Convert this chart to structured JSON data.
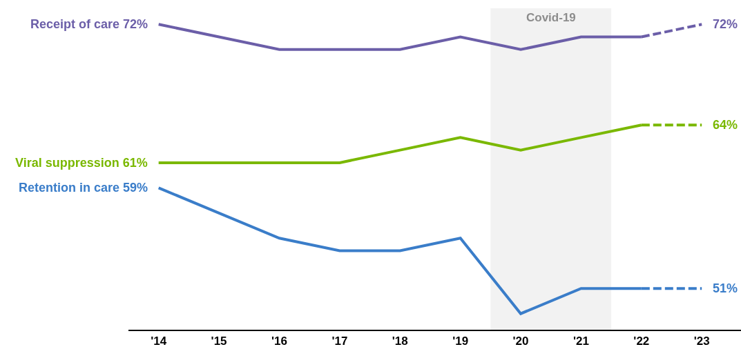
{
  "chart_data": {
    "type": "line",
    "x": [
      2014,
      2015,
      2016,
      2017,
      2018,
      2019,
      2020,
      2021,
      2022,
      2023
    ],
    "xlim": [
      2013.5,
      2023.65
    ],
    "xticks": [
      {
        "value": 2014,
        "label": "'14"
      },
      {
        "value": 2015,
        "label": "'15"
      },
      {
        "value": 2016,
        "label": "'16"
      },
      {
        "value": 2017,
        "label": "'17"
      },
      {
        "value": 2018,
        "label": "'18"
      },
      {
        "value": 2019,
        "label": "'19"
      },
      {
        "value": 2020,
        "label": "'20"
      },
      {
        "value": 2021,
        "label": "'21"
      },
      {
        "value": 2022,
        "label": "'22"
      },
      {
        "value": 2023,
        "label": "'23"
      }
    ],
    "tick_labels": "x",
    "grid": false,
    "legend": false,
    "marker": "none",
    "series": [
      {
        "name": "Receipt of care",
        "color": "#6b5ea8",
        "line_style": "solid",
        "values": [
          72,
          71,
          70,
          70,
          70,
          71,
          70,
          71,
          71,
          null
        ],
        "value_labels": [
          "72%",
          null,
          null,
          null,
          null,
          null,
          null,
          null,
          null,
          null
        ]
      },
      {
        "color": "#6b5ea8",
        "line_style": "dashed",
        "values": [
          null,
          null,
          null,
          null,
          null,
          null,
          null,
          null,
          71,
          72
        ],
        "value_labels": [
          null,
          null,
          null,
          null,
          null,
          null,
          null,
          null,
          null,
          "72%"
        ]
      },
      {
        "name": "Viral suppression",
        "color": "#7ab800",
        "line_style": "solid",
        "values": [
          61,
          61,
          61,
          61,
          62,
          63,
          62,
          63,
          64,
          null
        ],
        "value_labels": [
          "61%",
          null,
          null,
          null,
          null,
          null,
          null,
          null,
          null,
          null
        ]
      },
      {
        "color": "#7ab800",
        "line_style": "dashed",
        "values": [
          null,
          null,
          null,
          null,
          null,
          null,
          null,
          null,
          64,
          64
        ],
        "value_labels": [
          null,
          null,
          null,
          null,
          null,
          null,
          null,
          null,
          null,
          "64%"
        ]
      },
      {
        "name": "Retention in care",
        "color": "#3a7dc9",
        "line_style": "solid",
        "values": [
          59,
          57,
          55,
          54,
          54,
          55,
          49,
          51,
          51,
          null
        ],
        "value_labels": [
          "59%",
          null,
          null,
          null,
          null,
          null,
          null,
          null,
          null,
          null
        ]
      },
      {
        "color": "#3a7dc9",
        "line_style": "dashed",
        "values": [
          null,
          null,
          null,
          null,
          null,
          null,
          null,
          null,
          51,
          51
        ],
        "value_labels": [
          null,
          null,
          null,
          null,
          null,
          null,
          null,
          null,
          null,
          "51%"
        ]
      }
    ],
    "bands": [
      {
        "axis": "x",
        "from": 2019.5,
        "to": 2021.5,
        "label": "Covid-19",
        "color": "#f2f2f2"
      }
    ]
  }
}
